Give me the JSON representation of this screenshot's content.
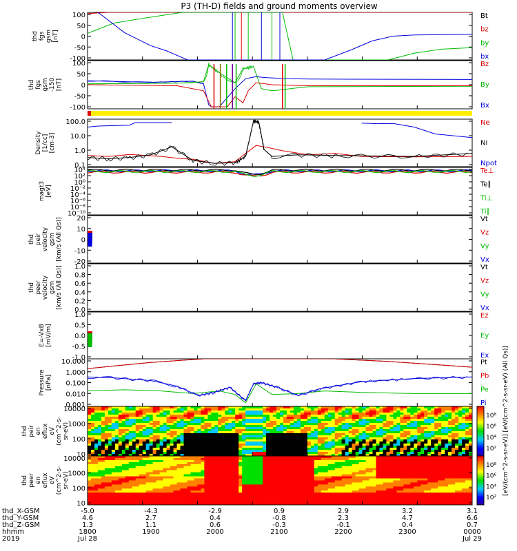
{
  "chart_data": {
    "type": "line",
    "title": "P3 (TH-D) fields and ground moments overview",
    "panels": [
      {
        "id": "fgs",
        "ylabel": [
          "thd",
          "fgs",
          "gsm",
          "[nT]"
        ],
        "yticks": [
          "100",
          "50",
          "0",
          "-50",
          "-100"
        ],
        "ylim": [
          -100,
          100
        ],
        "legend": [
          {
            "label": "Bt",
            "color": "#000000"
          },
          {
            "label": "bz",
            "color": "#dd0000"
          },
          {
            "label": "by",
            "color": "#00bb00"
          },
          {
            "label": "bx",
            "color": "#0000dd"
          }
        ]
      },
      {
        "id": "fgs_zoom",
        "ylabel": [
          "thd",
          "fgs",
          "gsm",
          "-150",
          "[nT]"
        ],
        "yticks": [
          "100",
          "50",
          "0",
          "-50",
          "-100"
        ],
        "ylim": [
          -120,
          120
        ],
        "legend": [
          {
            "label": "Bz",
            "color": "#dd0000"
          },
          {
            "label": "By",
            "color": "#00bb00"
          },
          {
            "label": "Bx",
            "color": "#0000dd"
          }
        ]
      },
      {
        "id": "density",
        "ylabel": [
          "Density",
          "[1/cc]",
          "[cm-3]"
        ],
        "yticks": [
          "100.0",
          "10.0",
          "1.0",
          "0.1"
        ],
        "ylim": [
          0.05,
          200
        ],
        "legend": [
          {
            "label": "Ne",
            "color": "#dd0000"
          },
          {
            "label": "Ni",
            "color": "#000000"
          },
          {
            "label": "Npot",
            "color": "#0000dd"
          }
        ]
      },
      {
        "id": "temperature",
        "ylabel": [
          "magt3",
          "[eV]"
        ],
        "yticks": [
          "10⁴",
          "10²",
          "10⁰",
          "10⁻²",
          "10⁻⁴",
          "10⁻⁶",
          "10⁻⁸",
          "10⁻¹⁰"
        ],
        "legend": [
          {
            "label": "Te⊥",
            "color": "#dd0000"
          },
          {
            "label": "Te∥",
            "color": "#000000"
          },
          {
            "label": "Ti⊥",
            "color": "#00bb00"
          },
          {
            "label": "Ti∥",
            "color": "#00bb00"
          }
        ]
      },
      {
        "id": "peir_velocity",
        "ylabel": [
          "thd",
          "peir",
          "velocity",
          "gsm",
          "[km/s (All Qs)]"
        ],
        "yticks": [
          "20",
          "10",
          "0",
          "-10",
          "-20"
        ],
        "ylim": [
          -20,
          20
        ],
        "legend": [
          {
            "label": "Vt",
            "color": "#000000"
          },
          {
            "label": "Vz",
            "color": "#dd0000"
          },
          {
            "label": "Vy",
            "color": "#00bb00"
          },
          {
            "label": "Vx",
            "color": "#0000dd"
          }
        ]
      },
      {
        "id": "peer_velocity",
        "ylabel": [
          "thd",
          "peer",
          "velocity",
          "gsm",
          "[km/s (All Qs)]"
        ],
        "yticks": [
          "1.0",
          "0.8",
          "0.6",
          "0.4",
          "0.2",
          "0.0"
        ],
        "ylim": [
          0,
          1
        ],
        "legend": [
          {
            "label": "Vt",
            "color": "#000000"
          },
          {
            "label": "Vz",
            "color": "#dd0000"
          },
          {
            "label": "Vy",
            "color": "#00bb00"
          },
          {
            "label": "Vx",
            "color": "#0000dd"
          }
        ]
      },
      {
        "id": "efield",
        "ylabel": [
          "E=-VxB",
          "[mV/m]"
        ],
        "yticks": [
          "1.0",
          "0.5",
          "0.0",
          "-0.5",
          "-1.0"
        ],
        "ylim": [
          -1,
          1
        ],
        "legend": [
          {
            "label": "Ez",
            "color": "#dd0000"
          },
          {
            "label": "Ey",
            "color": "#00bb00"
          },
          {
            "label": "Ex",
            "color": "#0000dd"
          }
        ]
      },
      {
        "id": "pressure",
        "ylabel": [
          "Pressure",
          "[nPa]"
        ],
        "yticks": [
          "10.000",
          "1.000",
          "0.100",
          "0.010",
          "0.001"
        ],
        "ylim": [
          0.001,
          10
        ],
        "legend": [
          {
            "label": "Pt",
            "color": "#000000"
          },
          {
            "label": "Pb",
            "color": "#dd0000"
          },
          {
            "label": "Pe",
            "color": "#00bb00"
          },
          {
            "label": "Pi",
            "color": "#0000dd"
          }
        ]
      },
      {
        "id": "peir_spec",
        "ylabel": [
          "thd",
          "peir",
          "en",
          "eflux",
          "eV",
          "(cm^2-s-",
          "sr-eV)"
        ],
        "yticks": [
          "10000",
          "1000",
          "100",
          "10"
        ],
        "colorbar_ticks": [
          "10⁸",
          "10⁶",
          "10⁴",
          "10²"
        ]
      },
      {
        "id": "peer_spec",
        "ylabel": [
          "thd",
          "peer",
          "en",
          "eflux",
          "eV",
          "(cm^2-s-",
          "sr-eV)"
        ],
        "yticks": [
          "10000",
          "1000",
          "100",
          "10"
        ],
        "colorbar_ticks": [
          "10⁸",
          "10⁶",
          "10⁴",
          "10²"
        ]
      }
    ],
    "colorbar_label": "[eV/(cm^2-s-sr-eV)] [eV/(cm^2-s-sr-eV) (All Qs)]",
    "hours": [
      17.8,
      18,
      19,
      20,
      21,
      22,
      23,
      24,
      25.1
    ],
    "traces": {
      "fgs_bx": [
        [
          18.0,
          100
        ],
        [
          18.5,
          15
        ],
        [
          19.0,
          -40
        ],
        [
          19.3,
          -62
        ],
        [
          19.7,
          -100
        ],
        [
          22.3,
          -100
        ],
        [
          22.8,
          -58
        ],
        [
          23.2,
          -20
        ],
        [
          23.6,
          0
        ],
        [
          24.0,
          5
        ],
        [
          25.1,
          8
        ]
      ],
      "fgs_by": [
        [
          17.8,
          12
        ],
        [
          18.3,
          55
        ],
        [
          19.0,
          80
        ],
        [
          19.6,
          100
        ],
        [
          21.5,
          100
        ],
        [
          21.7,
          -100
        ],
        [
          23.5,
          -100
        ],
        [
          24.0,
          -72
        ],
        [
          24.5,
          -55
        ],
        [
          25.1,
          -48
        ]
      ],
      "fgs_bz": [
        [
          17.8,
          95
        ],
        [
          18.2,
          100
        ],
        [
          23.0,
          100
        ],
        [
          25.1,
          100
        ]
      ],
      "fgs2_bx": [
        [
          17.8,
          20
        ],
        [
          19.0,
          12
        ],
        [
          19.8,
          18
        ],
        [
          20.0,
          5
        ],
        [
          20.1,
          -100
        ],
        [
          20.15,
          -110
        ],
        [
          20.3,
          -110
        ],
        [
          20.6,
          -20
        ],
        [
          20.8,
          30
        ],
        [
          21.0,
          40
        ],
        [
          21.2,
          35
        ],
        [
          21.6,
          30
        ],
        [
          22.0,
          28
        ],
        [
          25.1,
          26
        ]
      ],
      "fgs2_by": [
        [
          17.8,
          4
        ],
        [
          19.5,
          8
        ],
        [
          20.0,
          15
        ],
        [
          20.1,
          100
        ],
        [
          20.3,
          60
        ],
        [
          20.6,
          10
        ],
        [
          20.75,
          80
        ],
        [
          20.95,
          90
        ],
        [
          21.1,
          -20
        ],
        [
          21.3,
          -30
        ],
        [
          21.5,
          -25
        ],
        [
          21.7,
          -18
        ],
        [
          22.0,
          -10
        ],
        [
          25.1,
          -8
        ]
      ],
      "fgs2_bz": [
        [
          17.8,
          0
        ],
        [
          19.5,
          -5
        ],
        [
          20.0,
          -30
        ],
        [
          20.15,
          -110
        ],
        [
          20.45,
          -110
        ],
        [
          20.6,
          -60
        ],
        [
          20.75,
          -90
        ],
        [
          20.85,
          -30
        ],
        [
          21.0,
          10
        ],
        [
          21.3,
          0
        ],
        [
          22.0,
          -5
        ],
        [
          25.1,
          -5
        ]
      ],
      "dens_ne": [
        [
          17.8,
          0.35
        ],
        [
          18.2,
          0.3
        ],
        [
          18.6,
          0.42
        ],
        [
          19.2,
          0.3
        ],
        [
          19.5,
          0.22
        ],
        [
          19.8,
          0.18
        ],
        [
          20.2,
          0.09
        ],
        [
          20.6,
          0.12
        ],
        [
          20.8,
          0.5
        ],
        [
          21.0,
          2.0
        ],
        [
          21.2,
          1.5
        ],
        [
          21.5,
          0.8
        ],
        [
          22.0,
          0.4
        ],
        [
          22.5,
          0.5
        ],
        [
          23.0,
          0.3
        ],
        [
          24.0,
          0.28
        ],
        [
          25.1,
          0.3
        ]
      ],
      "dens_ni": [
        [
          17.8,
          0.25
        ],
        [
          18.2,
          0.2
        ],
        [
          18.6,
          0.25
        ],
        [
          19.0,
          0.4
        ],
        [
          19.4,
          1.6
        ],
        [
          19.8,
          0.15
        ],
        [
          20.2,
          0.09
        ],
        [
          20.6,
          0.1
        ],
        [
          20.8,
          0.3
        ],
        [
          20.95,
          150
        ],
        [
          21.05,
          120
        ],
        [
          21.15,
          1.0
        ],
        [
          21.3,
          0.3
        ],
        [
          21.8,
          0.4
        ],
        [
          22.5,
          0.35
        ],
        [
          24.0,
          0.3
        ],
        [
          25.1,
          0.5
        ]
      ],
      "dens_npot": [
        [
          17.8,
          50
        ],
        [
          18.0,
          60
        ],
        [
          18.6,
          70
        ],
        [
          18.7,
          110
        ],
        [
          19.0,
          110
        ],
        [
          19.4,
          110
        ]
      ],
      "dens_npot2": [
        [
          23.0,
          100
        ],
        [
          23.3,
          90
        ],
        [
          23.6,
          95
        ],
        [
          24.0,
          50
        ],
        [
          24.4,
          15
        ],
        [
          25.1,
          8
        ]
      ],
      "pres_pt": [
        [
          17.8,
          1.5
        ],
        [
          18.3,
          2.5
        ],
        [
          19.0,
          5
        ],
        [
          20.0,
          10
        ],
        [
          21.5,
          10
        ],
        [
          22.5,
          10
        ],
        [
          23.5,
          6
        ],
        [
          24.3,
          3.5
        ],
        [
          25.1,
          2
        ]
      ],
      "pres_pb": [
        [
          17.8,
          1.5
        ],
        [
          18.3,
          2.5
        ],
        [
          19.0,
          5
        ],
        [
          20.0,
          10
        ],
        [
          21.5,
          10
        ],
        [
          22.5,
          10
        ],
        [
          23.5,
          6
        ],
        [
          24.3,
          3.5
        ],
        [
          25.1,
          2
        ]
      ],
      "pres_pe": [
        [
          17.8,
          0.02
        ],
        [
          18.5,
          0.025
        ],
        [
          19.2,
          0.02
        ],
        [
          19.8,
          0.012
        ],
        [
          20.3,
          0.02
        ],
        [
          20.6,
          0.01
        ],
        [
          20.8,
          0.002
        ],
        [
          21.0,
          0.08
        ],
        [
          21.3,
          0.01
        ],
        [
          21.8,
          0.012
        ],
        [
          22.3,
          0.02
        ],
        [
          23.0,
          0.015
        ],
        [
          24.0,
          0.012
        ],
        [
          25.1,
          0.012
        ]
      ],
      "pres_pi": [
        [
          17.8,
          0.3
        ],
        [
          18.3,
          0.25
        ],
        [
          19.0,
          0.15
        ],
        [
          19.5,
          0.05
        ],
        [
          19.9,
          0.008
        ],
        [
          20.2,
          0.015
        ],
        [
          20.5,
          0.04
        ],
        [
          20.8,
          0.003
        ],
        [
          20.95,
          0.08
        ],
        [
          21.1,
          0.1
        ],
        [
          21.4,
          0.04
        ],
        [
          21.8,
          0.008
        ],
        [
          22.2,
          0.03
        ],
        [
          23.0,
          0.12
        ],
        [
          24.0,
          0.22
        ],
        [
          25.1,
          0.3
        ]
      ]
    }
  },
  "axis": {
    "rows": [
      {
        "label": "thd_X-GSM",
        "values": [
          "-5.0",
          "-4.3",
          "-2.9",
          "0.9",
          "2.9",
          "3.2",
          "3.1"
        ]
      },
      {
        "label": "thd_Y-GSM",
        "values": [
          "4.6",
          "2.7",
          "0.4",
          "-0.8",
          "2.3",
          "4.7",
          "6.6"
        ]
      },
      {
        "label": "thd_Z-GSM",
        "values": [
          "1.3",
          "1.1",
          "0.6",
          "-0.3",
          "-0.1",
          "0.4",
          "0.7"
        ]
      },
      {
        "label": "hhmm",
        "values": [
          "1800",
          "1900",
          "2000",
          "2100",
          "2200",
          "2300",
          "0000"
        ]
      }
    ],
    "year": "2019",
    "date_start": "Jul 28",
    "date_end": "Jul 29"
  },
  "colors": {
    "red": "#dd0000",
    "green": "#00bb00",
    "blue": "#0000dd",
    "black": "#000000",
    "yellow": "#ffee00"
  }
}
